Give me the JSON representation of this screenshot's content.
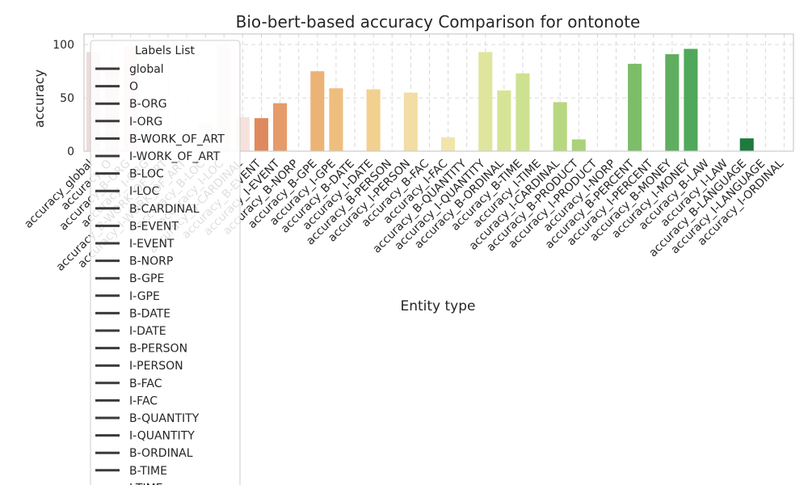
{
  "chart_data": {
    "type": "bar",
    "title": "Bio-bert-based accuracy Comparison for ontonote",
    "xlabel": "Entity type",
    "ylabel": "accuracy",
    "ylim": [
      0,
      110
    ],
    "yticks": [
      0,
      50,
      100
    ],
    "grid": true,
    "categories": [
      "accuracy_global",
      "accuracy_O",
      "accuracy_B-ORG",
      "accuracy_I-ORG",
      "accuracy_B-WORK_OF_ART",
      "accuracy_I-WORK_OF_ART",
      "accuracy_B-LOC",
      "accuracy_I-LOC",
      "accuracy_B-CARDINAL",
      "accuracy_B-EVENT",
      "accuracy_I-EVENT",
      "accuracy_B-NORP",
      "accuracy_B-GPE",
      "accuracy_I-GPE",
      "accuracy_B-DATE",
      "accuracy_I-DATE",
      "accuracy_B-PERSON",
      "accuracy_I-PERSON",
      "accuracy_B-FAC",
      "accuracy_I-FAC",
      "accuracy_B-QUANTITY",
      "accuracy_I-QUANTITY",
      "accuracy_B-ORDINAL",
      "accuracy_B-TIME",
      "accuracy_I-TIME",
      "accuracy_I-CARDINAL",
      "accuracy_B-PRODUCT",
      "accuracy_I-PRODUCT",
      "accuracy_I-NORP",
      "accuracy_B-PERCENT",
      "accuracy_I-PERCENT",
      "accuracy_B-MONEY",
      "accuracy_I-MONEY",
      "accuracy_B-LAW",
      "accuracy_I-LAW",
      "accuracy_B-LANGUAGE",
      "accuracy_I-LANGUAGE",
      "accuracy_I-ORDINAL"
    ],
    "values": [
      93,
      75,
      98,
      0,
      0,
      0,
      25,
      100,
      32,
      31,
      45,
      0,
      75,
      59,
      0,
      58,
      0,
      55,
      0,
      13,
      0,
      93,
      57,
      73,
      0,
      46,
      11,
      0,
      0,
      82,
      0,
      91,
      96,
      0,
      0,
      12,
      0,
      0
    ],
    "colors": [
      "#f1d9da",
      "#f0dadb",
      "#f3dede",
      "#f4e0df",
      "#f5e3e1",
      "#f6e5e3",
      "#f6e4e1",
      "#f7e6e3",
      "#f6e2dc",
      "#df8a5e",
      "#e69b6a",
      "#e9a870",
      "#ecb376",
      "#efbe7e",
      "#f1c887",
      "#f2d190",
      "#f3d99b",
      "#f2dea4",
      "#f2e3ac",
      "#f0e6ab",
      "#e8e6a3",
      "#dfe59c",
      "#d6e496",
      "#cde290",
      "#c3dd88",
      "#b8d880",
      "#aad27a",
      "#9bcb74",
      "#8cc46f",
      "#7dbd6a",
      "#6eb665",
      "#5fae60",
      "#50a85b",
      "#409f55",
      "#30964f",
      "#1f7a3f",
      "#15703a",
      "#0d6630"
    ],
    "legend": {
      "title": "Labels List",
      "placement": "upper-left",
      "entries": [
        "global",
        "O",
        "B-ORG",
        "I-ORG",
        "B-WORK_OF_ART",
        "I-WORK_OF_ART",
        "B-LOC",
        "I-LOC",
        "B-CARDINAL",
        "B-EVENT",
        "I-EVENT",
        "B-NORP",
        "B-GPE",
        "I-GPE",
        "B-DATE",
        "I-DATE",
        "B-PERSON",
        "I-PERSON",
        "B-FAC",
        "I-FAC",
        "B-QUANTITY",
        "I-QUANTITY",
        "B-ORDINAL",
        "B-TIME",
        "I-TIME"
      ]
    }
  }
}
